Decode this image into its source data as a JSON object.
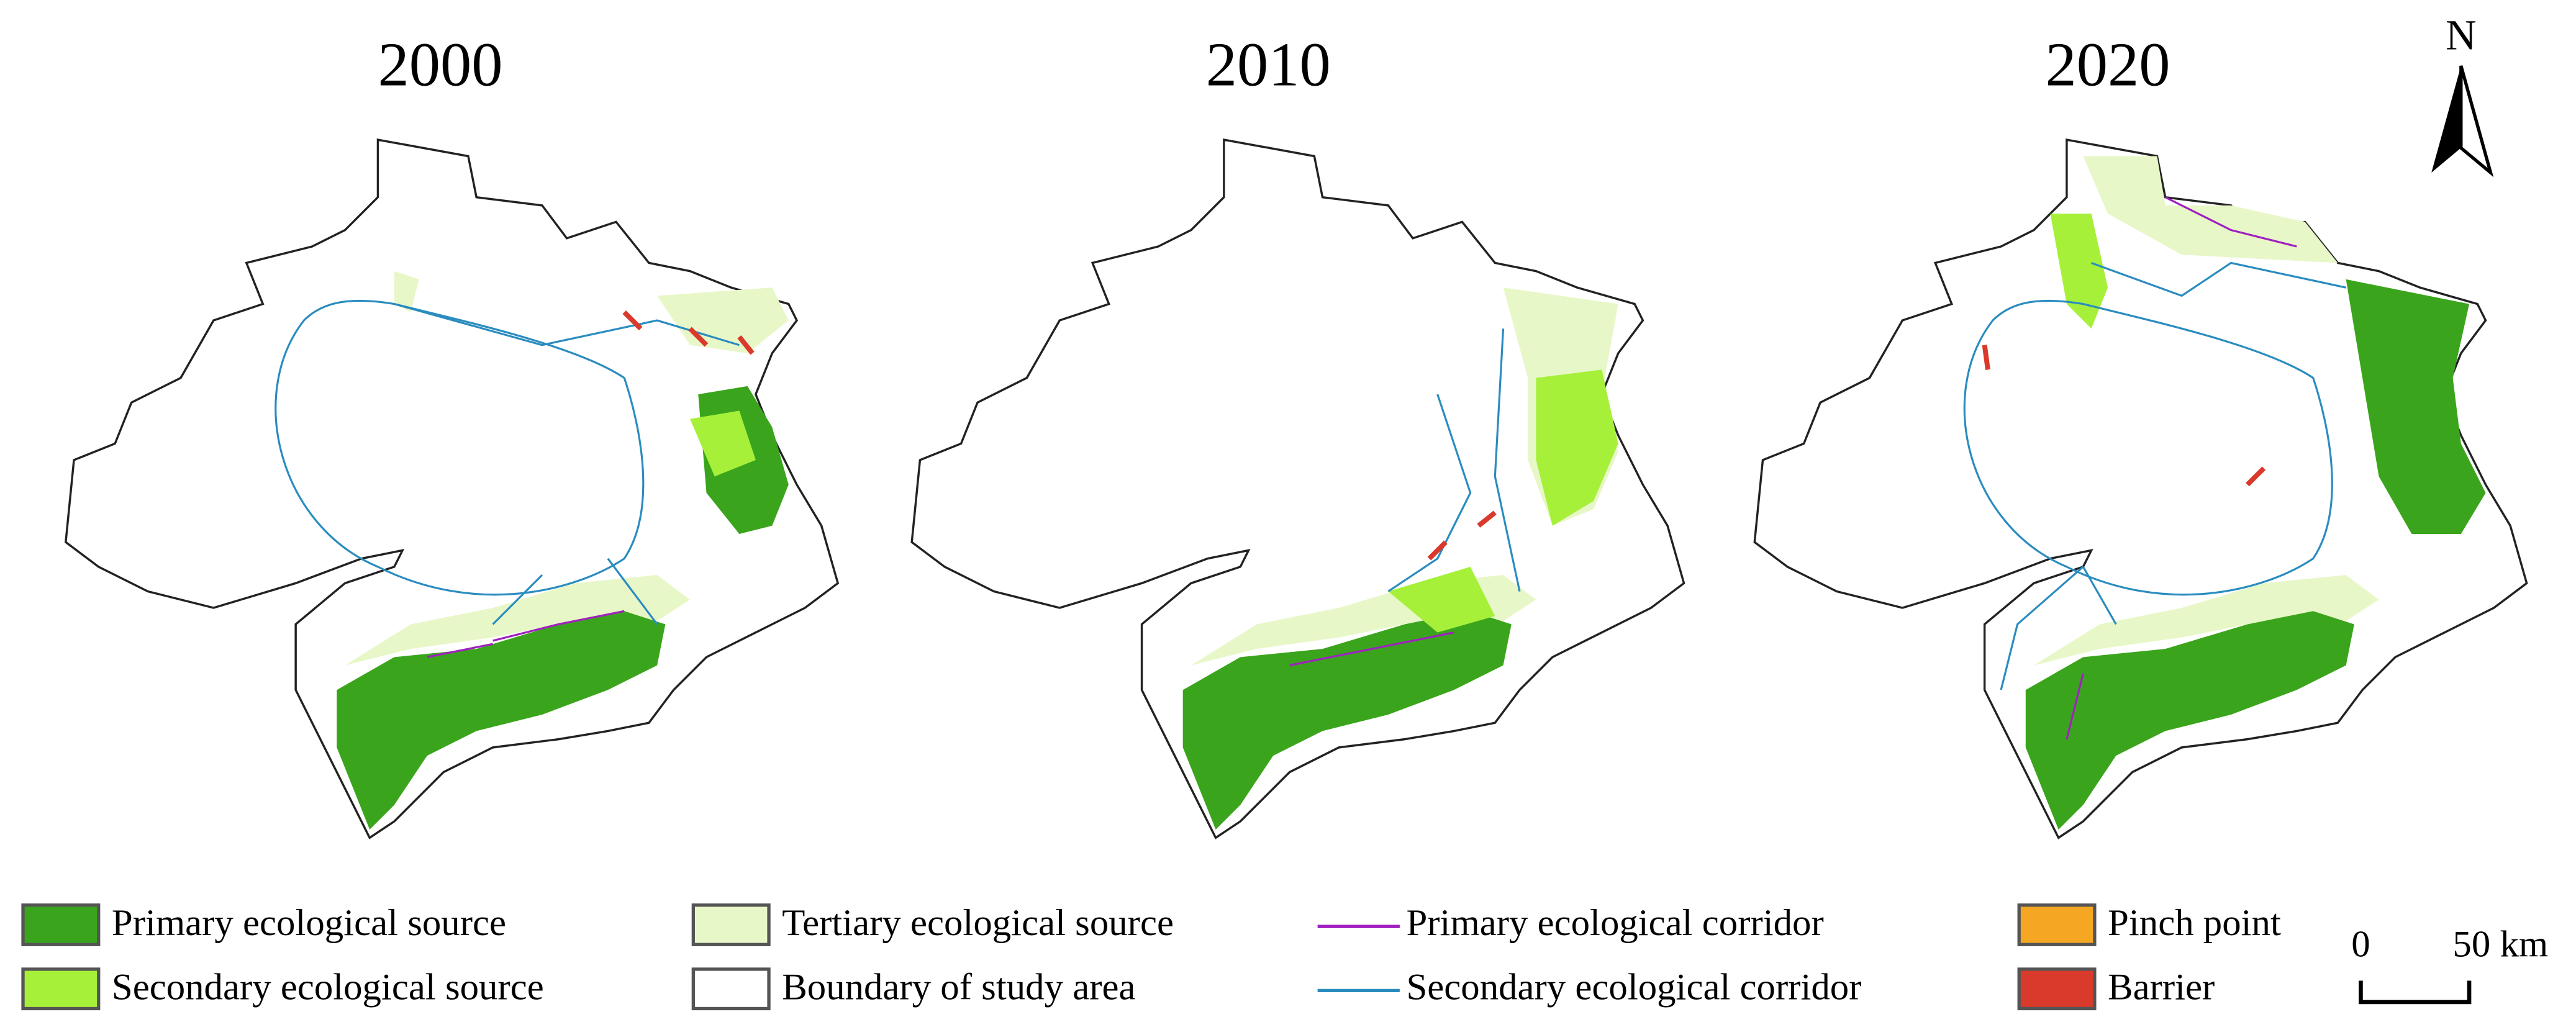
{
  "panels": [
    {
      "title": "2000"
    },
    {
      "title": "2010"
    },
    {
      "title": "2020"
    }
  ],
  "north": "N",
  "legend": [
    {
      "label": "Primary ecological source"
    },
    {
      "label": "Secondary ecological source"
    },
    {
      "label": "Tertiary ecological source"
    },
    {
      "label": "Boundary of study area"
    },
    {
      "label": "Primary ecological corridor"
    },
    {
      "label": "Secondary ecological corridor"
    },
    {
      "label": "Pinch point"
    },
    {
      "label": "Barrier"
    }
  ],
  "scale": {
    "start": "0",
    "end": "50 km"
  }
}
